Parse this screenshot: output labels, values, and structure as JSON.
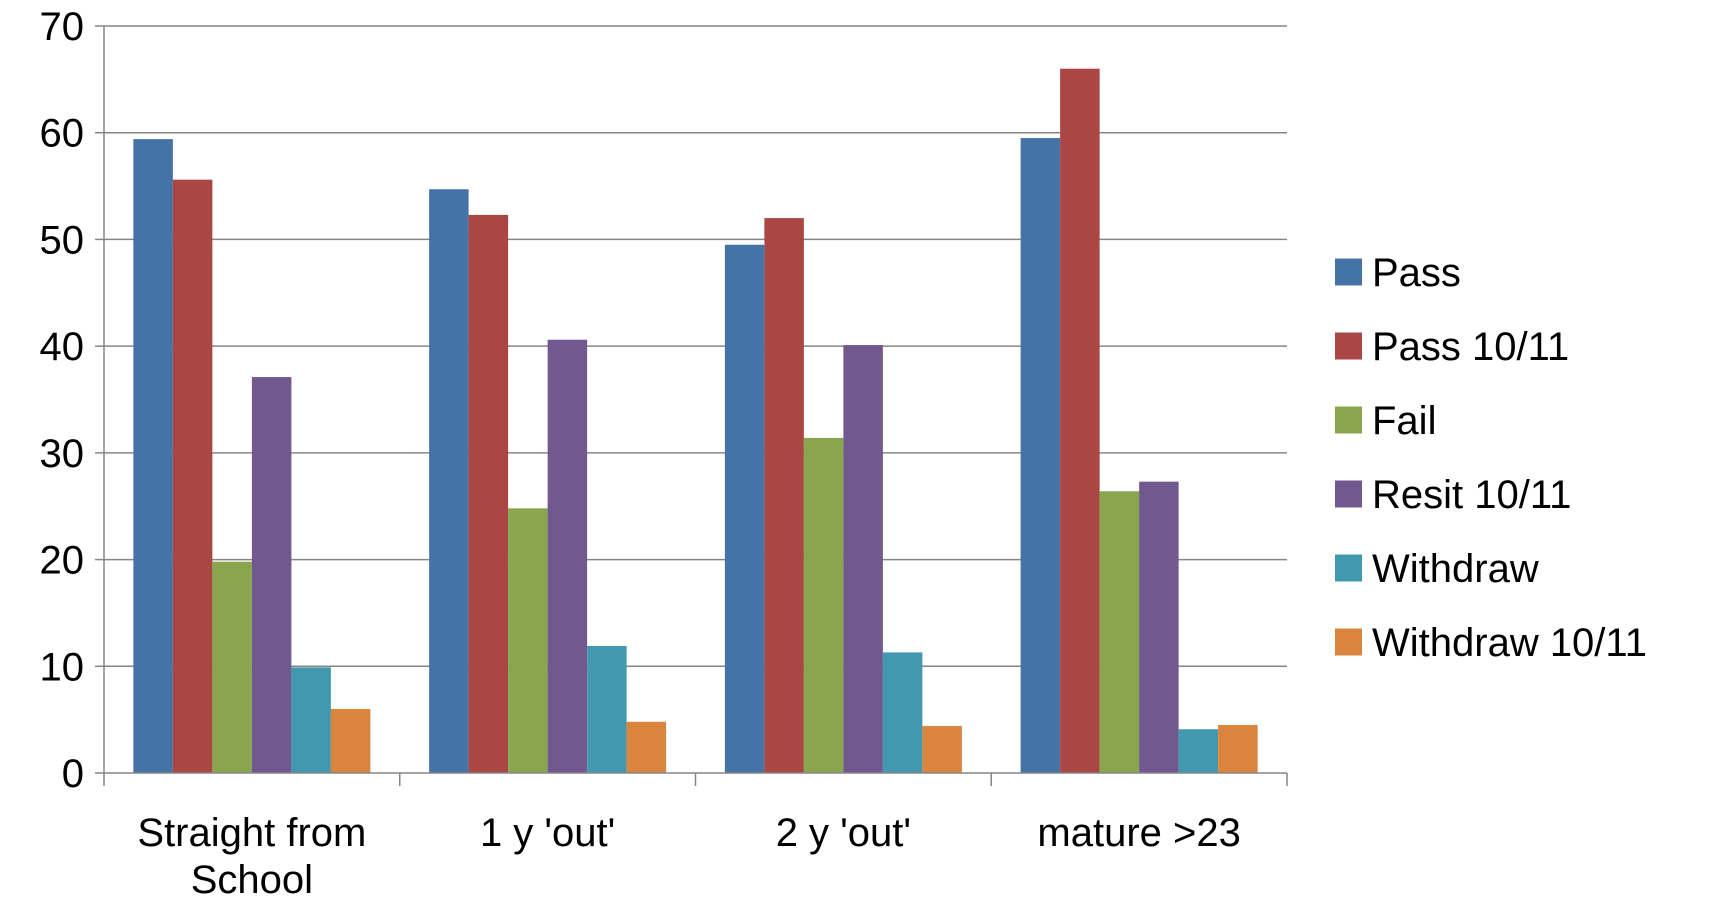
{
  "chart_data": {
    "type": "bar",
    "title": "",
    "xlabel": "",
    "ylabel": "",
    "ylim": [
      0,
      70
    ],
    "yticks": [
      0,
      10,
      20,
      30,
      40,
      50,
      60,
      70
    ],
    "grid": true,
    "legend_position": "right",
    "categories": [
      [
        "Straight from",
        "School"
      ],
      [
        "1 y 'out'"
      ],
      [
        "2 y 'out'"
      ],
      [
        "mature >23"
      ]
    ],
    "series": [
      {
        "name": "Pass",
        "color": "#4572A7",
        "values": [
          59.4,
          54.7,
          49.5,
          59.5
        ]
      },
      {
        "name": "Pass 10/11",
        "color": "#AA4643",
        "values": [
          55.6,
          52.3,
          52.0,
          66.0
        ]
      },
      {
        "name": "Fail",
        "color": "#89A54E",
        "values": [
          19.8,
          24.8,
          31.4,
          26.4
        ]
      },
      {
        "name": "Resit 10/11",
        "color": "#71588F",
        "values": [
          37.1,
          40.6,
          40.1,
          27.3
        ]
      },
      {
        "name": "Withdraw",
        "color": "#4198AF",
        "values": [
          9.9,
          11.9,
          11.3,
          4.1
        ]
      },
      {
        "name": "Withdraw 10/11",
        "color": "#DB843D",
        "values": [
          6.0,
          4.8,
          4.4,
          4.5
        ]
      }
    ]
  }
}
